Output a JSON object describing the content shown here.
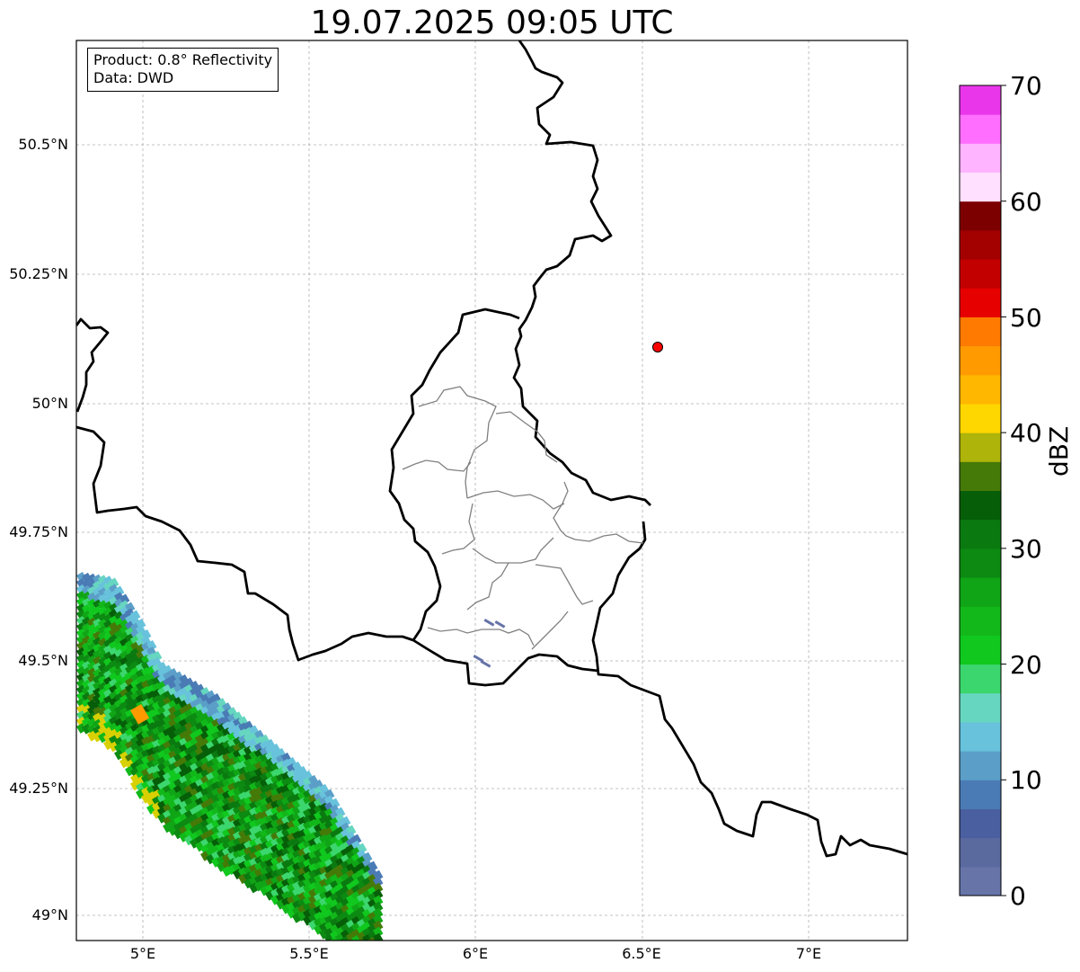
{
  "title": "19.07.2025 09:05 UTC",
  "info": {
    "product": "Product: 0.8° Reflectivity",
    "data": "Data: DWD"
  },
  "axes": {
    "lon_ticks": [
      "5°E",
      "5.5°E",
      "6°E",
      "6.5°E",
      "7°E"
    ],
    "lat_ticks": [
      "50.5°N",
      "50.25°N",
      "50°N",
      "49.75°N",
      "49.5°N",
      "49.25°N",
      "49°N"
    ]
  },
  "radar_site": {
    "marker_color": "#ff0000"
  },
  "colorbar": {
    "label": "dBZ",
    "ticks": [
      "0",
      "10",
      "20",
      "30",
      "40",
      "50",
      "60",
      "70"
    ],
    "colors": [
      "#6674a8",
      "#5a6a9f",
      "#4a5fa0",
      "#4a7bb5",
      "#5b9fc8",
      "#68c2dc",
      "#66d6c0",
      "#3cd66e",
      "#10c81e",
      "#12b81a",
      "#10a516",
      "#0c8a12",
      "#0a7a10",
      "#065e08",
      "#457a08",
      "#aeb40a",
      "#ffd700",
      "#ffb700",
      "#ff9a00",
      "#ff7a00",
      "#e60000",
      "#c20000",
      "#a30000",
      "#7c0000",
      "#ffe1ff",
      "#ffb4ff",
      "#ff6eff",
      "#ea36ea"
    ]
  }
}
